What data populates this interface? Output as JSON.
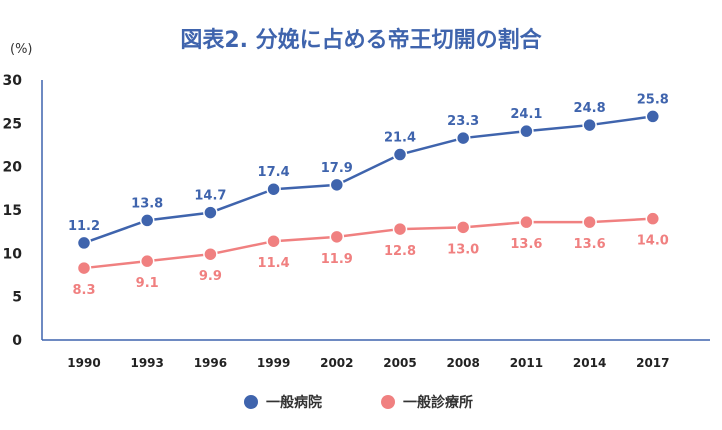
{
  "chart_data": {
    "type": "line",
    "title": "図表2. 分娩に占める帝王切開の割合",
    "unit_label": "(%)",
    "xlabel": "",
    "ylabel": "",
    "ylim": [
      0,
      30
    ],
    "y_ticks": [
      0,
      5,
      10,
      15,
      20,
      25,
      30
    ],
    "categories": [
      "1990",
      "1993",
      "1996",
      "1999",
      "2002",
      "2005",
      "2008",
      "2011",
      "2014",
      "2017"
    ],
    "grid": false,
    "legend_position": "bottom",
    "series": [
      {
        "name": "一般病院",
        "color": "#3f64ad",
        "values": [
          11.2,
          13.8,
          14.7,
          17.4,
          17.9,
          21.4,
          23.3,
          24.1,
          24.8,
          25.8
        ],
        "labels": [
          "11.2",
          "13.8",
          "14.7",
          "17.4",
          "17.9",
          "21.4",
          "23.3",
          "24.1",
          "24.8",
          "25.8"
        ]
      },
      {
        "name": "一般診療所",
        "color": "#f08080",
        "values": [
          8.3,
          9.1,
          9.9,
          11.4,
          11.9,
          12.8,
          13.0,
          13.6,
          13.6,
          14.0
        ],
        "labels": [
          "8.3",
          "9.1",
          "9.9",
          "11.4",
          "11.9",
          "12.8",
          "13.0",
          "13.6",
          "13.6",
          "14.0"
        ]
      }
    ]
  }
}
